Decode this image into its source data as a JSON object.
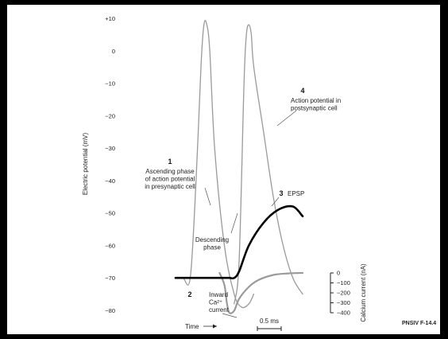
{
  "chart_data": {
    "type": "line",
    "title": "",
    "ylabel": "Electric potential (mV)",
    "y_ticks": [
      "+10",
      "0",
      "−10",
      "−20",
      "−30",
      "−40",
      "−50",
      "−60",
      "−70",
      "−80"
    ],
    "ylim": [
      -80,
      10
    ],
    "right_axis": {
      "label": "Calcium current (nA)",
      "ticks": [
        "0",
        "−100",
        "−200",
        "−300",
        "−400"
      ],
      "ylim": [
        -400,
        0
      ]
    },
    "xlabel": "Time",
    "scale_bar": "0.5 ms",
    "series": [
      {
        "key": "presynaptic",
        "color": "#9a9a9a",
        "width": 1.3,
        "x": [
          0,
          0.15,
          0.3,
          0.42,
          0.52,
          0.58,
          0.64,
          0.7,
          0.8,
          1.0,
          1.2,
          1.35,
          1.5,
          1.6
        ],
        "y": [
          -70,
          -70,
          -70,
          -40,
          -5,
          8,
          8,
          0,
          -30,
          -60,
          -75,
          -79,
          -78,
          -75
        ]
      },
      {
        "key": "postsynaptic",
        "color": "#9a9a9a",
        "width": 1.3,
        "x": [
          1.2,
          1.3,
          1.4,
          1.45,
          1.5,
          1.55,
          1.6,
          1.8,
          2.0,
          2.2,
          2.4,
          2.6
        ],
        "y": [
          -78,
          -65,
          -10,
          5,
          8,
          5,
          -5,
          -25,
          -45,
          -60,
          -70,
          -75
        ]
      },
      {
        "key": "epsp",
        "color": "#000000",
        "width": 2.6,
        "x": [
          0.0,
          0.4,
          0.9,
          1.1,
          1.2,
          1.3,
          1.5,
          1.8,
          2.1,
          2.4,
          2.6
        ],
        "y": [
          -70,
          -70,
          -70,
          -70,
          -70,
          -68,
          -60,
          -53,
          -49,
          -48,
          -51
        ]
      },
      {
        "key": "calcium",
        "color": "#9a9a9a",
        "width": 2.2,
        "axis": "right",
        "x": [
          0.9,
          1.0,
          1.05,
          1.1,
          1.2,
          1.3,
          1.5,
          1.7,
          2.0,
          2.3,
          2.6
        ],
        "y": [
          0,
          -120,
          -300,
          -400,
          -380,
          -260,
          -140,
          -70,
          -20,
          -5,
          0
        ]
      }
    ],
    "annotations": [
      {
        "key": "a1",
        "number": "1",
        "lines": [
          "Ascending phase",
          "of action potential",
          "in presynaptic cell"
        ]
      },
      {
        "key": "desc",
        "number": "",
        "lines": [
          "Descending",
          "phase"
        ]
      },
      {
        "key": "a2",
        "number": "2",
        "lines": [
          "Inward",
          "Ca²⁺",
          "current"
        ]
      },
      {
        "key": "a3",
        "number": "3",
        "lines": [
          "EPSP"
        ]
      },
      {
        "key": "a4",
        "number": "4",
        "lines": [
          "Action potential in",
          "postsynaptic cell"
        ]
      }
    ],
    "figure_id": "PNSIV F-14.4"
  }
}
